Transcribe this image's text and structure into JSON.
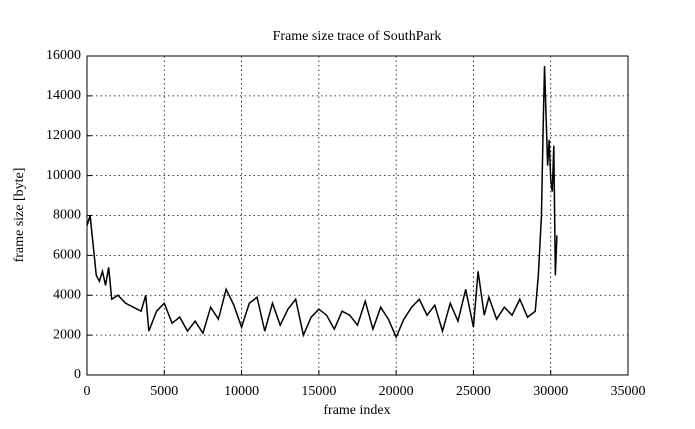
{
  "chart_data": {
    "type": "line",
    "title": "Frame size trace of SouthPark",
    "x_label": "frame index",
    "y_label": "frame size [byte]",
    "xlim": [
      0,
      35000
    ],
    "xticks": [
      0,
      5000,
      10000,
      15000,
      20000,
      25000,
      30000,
      35000
    ],
    "ylim": [
      0,
      16000
    ],
    "yticks": [
      0,
      2000,
      4000,
      6000,
      8000,
      10000,
      12000,
      14000,
      16000
    ],
    "grid": true,
    "x": [
      0,
      200,
      400,
      600,
      800,
      1000,
      1200,
      1400,
      1600,
      2000,
      2500,
      3000,
      3500,
      3800,
      4000,
      4500,
      5000,
      5500,
      6000,
      6500,
      7000,
      7500,
      8000,
      8500,
      9000,
      9500,
      10000,
      10500,
      11000,
      11500,
      12000,
      12500,
      13000,
      13500,
      14000,
      14500,
      15000,
      15500,
      16000,
      16500,
      17000,
      17500,
      18000,
      18500,
      19000,
      19500,
      20000,
      20500,
      21000,
      21500,
      22000,
      22500,
      23000,
      23500,
      24000,
      24500,
      25000,
      25300,
      25700,
      26000,
      26500,
      27000,
      27500,
      28000,
      28500,
      29000,
      29200,
      29400,
      29500,
      29600,
      29700,
      29800,
      29900,
      30000,
      30100,
      30200,
      30300,
      30400
    ],
    "series": [
      {
        "name": "SouthPark",
        "color": "#000000",
        "values": [
          7500,
          8000,
          6500,
          5000,
          4700,
          5200,
          4500,
          5400,
          3800,
          4000,
          3600,
          3400,
          3200,
          4000,
          2200,
          3200,
          3600,
          2600,
          2900,
          2200,
          2700,
          2100,
          3400,
          2800,
          4300,
          3500,
          2400,
          3600,
          3900,
          2200,
          3600,
          2500,
          3300,
          3800,
          2000,
          2900,
          3300,
          3000,
          2300,
          3200,
          3000,
          2500,
          3700,
          2300,
          3400,
          2800,
          1900,
          2800,
          3400,
          3800,
          3000,
          3500,
          2200,
          3600,
          2700,
          4300,
          2400,
          5200,
          3000,
          3900,
          2800,
          3400,
          3000,
          3800,
          2900,
          3200,
          5000,
          8000,
          12000,
          15500,
          13000,
          10500,
          11800,
          9800,
          9200,
          11500,
          5000,
          7000
        ]
      }
    ]
  }
}
